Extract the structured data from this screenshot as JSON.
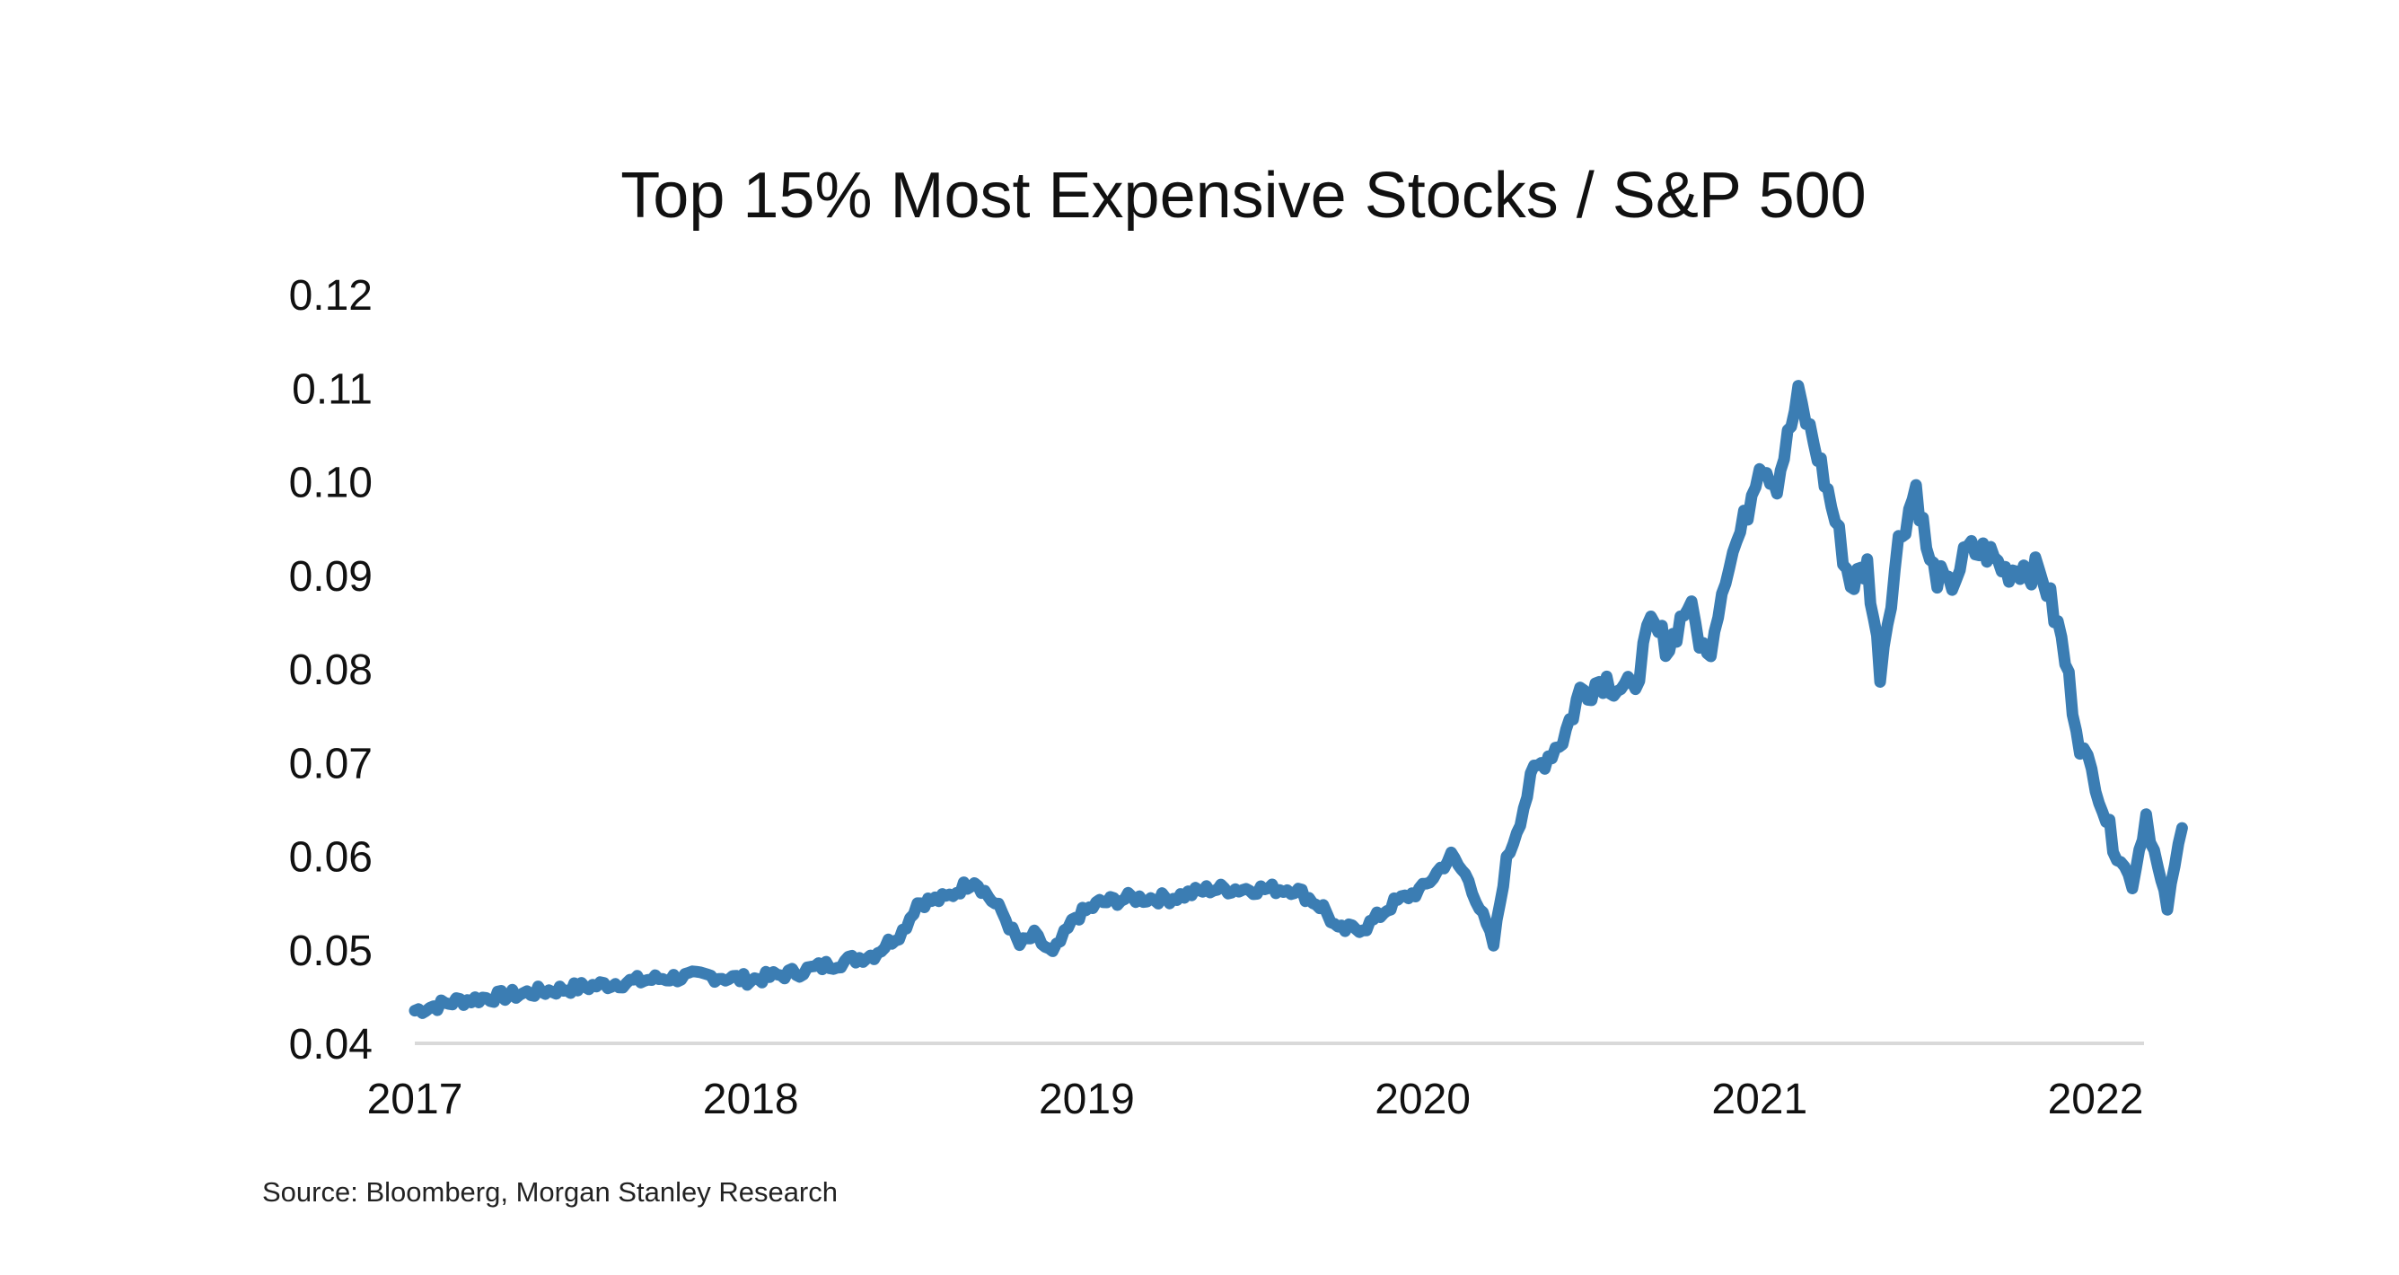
{
  "source": "Source: Bloomberg, Morgan Stanley Research",
  "chart_data": {
    "type": "line",
    "title": "Top 15% Most Expensive Stocks / S&P 500",
    "xlabel": "",
    "ylabel": "",
    "x_ticks": [
      "2017",
      "2018",
      "2019",
      "2020",
      "2021",
      "2022"
    ],
    "y_ticks": [
      "0.12",
      "0.11",
      "0.10",
      "0.09",
      "0.08",
      "0.07",
      "0.06",
      "0.05",
      "0.04"
    ],
    "xlim": [
      "2017-01-01",
      "2022-04-05"
    ],
    "ylim": [
      0.04,
      0.12
    ],
    "grid": false,
    "legend": "none",
    "colors": {
      "line": "#3b7db3",
      "axis": "#d9d9d9",
      "text": "#111111"
    },
    "series": [
      {
        "x": [
          "2017-01-01",
          "2017-02-15",
          "2017-04-01",
          "2017-05-15",
          "2017-07-01",
          "2017-08-15",
          "2017-10-01",
          "2017-11-15",
          "2018-01-01",
          "2018-02-15",
          "2018-04-01",
          "2018-05-15",
          "2018-06-15",
          "2018-07-01",
          "2018-08-01",
          "2018-09-01",
          "2018-10-01",
          "2018-10-20",
          "2018-11-05",
          "2018-11-25",
          "2018-12-20",
          "2019-01-15",
          "2019-02-15",
          "2019-04-01",
          "2019-05-15",
          "2019-07-01",
          "2019-08-15",
          "2019-09-15",
          "2019-10-01",
          "2019-11-01",
          "2019-12-01",
          "2020-01-01",
          "2020-02-01",
          "2020-02-20",
          "2020-03-18",
          "2020-04-01",
          "2020-05-01",
          "2020-06-01",
          "2020-06-20",
          "2020-07-15",
          "2020-08-15",
          "2020-09-05",
          "2020-09-25",
          "2020-10-15",
          "2020-11-05",
          "2020-11-25",
          "2020-12-15",
          "2021-01-01",
          "2021-01-20",
          "2021-02-12",
          "2021-03-05",
          "2021-03-20",
          "2021-04-10",
          "2021-04-28",
          "2021-05-12",
          "2021-06-01",
          "2021-06-20",
          "2021-07-05",
          "2021-07-25",
          "2021-08-15",
          "2021-09-05",
          "2021-09-25",
          "2021-10-15",
          "2021-11-05",
          "2021-11-25",
          "2021-12-15",
          "2022-01-01",
          "2022-01-20",
          "2022-02-10",
          "2022-02-25",
          "2022-03-10",
          "2022-03-20",
          "2022-04-05"
        ],
        "y": [
          0.0435,
          0.0445,
          0.045,
          0.0455,
          0.046,
          0.0465,
          0.047,
          0.0472,
          0.0468,
          0.0475,
          0.0485,
          0.0495,
          0.052,
          0.055,
          0.0555,
          0.0575,
          0.054,
          0.0505,
          0.0515,
          0.0495,
          0.0535,
          0.055,
          0.0555,
          0.0555,
          0.0565,
          0.0565,
          0.0565,
          0.0545,
          0.052,
          0.0525,
          0.055,
          0.0565,
          0.06,
          0.0575,
          0.0505,
          0.0595,
          0.069,
          0.0725,
          0.0775,
          0.079,
          0.0775,
          0.0845,
          0.0825,
          0.087,
          0.081,
          0.0905,
          0.0955,
          0.1025,
          0.1,
          0.109,
          0.103,
          0.0975,
          0.089,
          0.091,
          0.08,
          0.0935,
          0.0995,
          0.091,
          0.0885,
          0.0925,
          0.0925,
          0.0905,
          0.091,
          0.09,
          0.083,
          0.072,
          0.068,
          0.0615,
          0.057,
          0.0645,
          0.0585,
          0.0545,
          0.063
        ]
      }
    ]
  }
}
